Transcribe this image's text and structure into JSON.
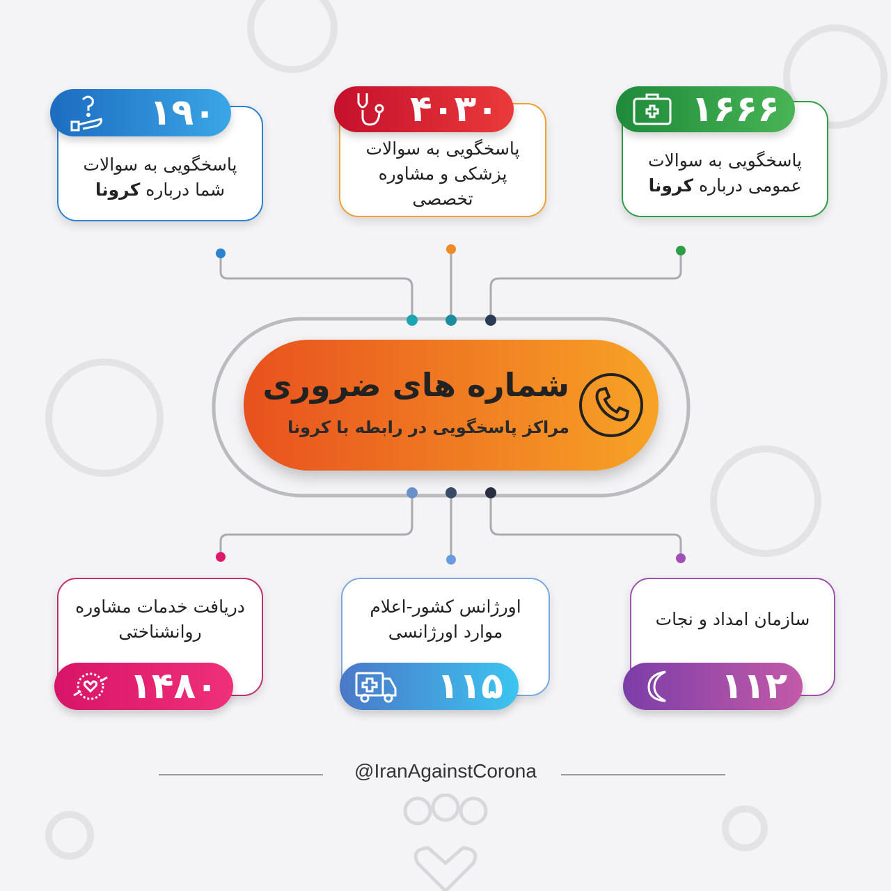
{
  "title": "شماره های ضروری",
  "subtitle": "مراکز پاسخگویی در رابطه با کرونا",
  "cards": [
    {
      "number": "۱۹۰",
      "text": "پاسخگویی به سوالات شما درباره ",
      "bold": "کرونا",
      "icon": "hand-question-icon",
      "color": "#2a82d0"
    },
    {
      "number": "۴۰۳۰",
      "text": "پاسخگویی به سوالات پزشکی و مشاوره تخصصی",
      "bold": "",
      "icon": "stethoscope-icon",
      "color": "#d8202f"
    },
    {
      "number": "۱۶۶۶",
      "text": "پاسخگویی به سوالات عمومی درباره ",
      "bold": "کرونا",
      "icon": "first-aid-kit-icon",
      "color": "#2e9e44"
    },
    {
      "number": "۱۴۸۰",
      "text": "دریافت خدمات مشاوره روانشناختی",
      "bold": "",
      "icon": "hands-heart-icon",
      "color": "#e0186c"
    },
    {
      "number": "۱۱۵",
      "text": "اورژانس کشور-اعلام موارد اورژانسی",
      "bold": "",
      "icon": "ambulance-icon",
      "color": "#3a8fe0"
    },
    {
      "number": "۱۱۲",
      "text": "سازمان امداد و نجات",
      "bold": "",
      "icon": "crescent-icon",
      "color": "#8e4fb0"
    }
  ],
  "footer": "@IranAgainstCorona"
}
